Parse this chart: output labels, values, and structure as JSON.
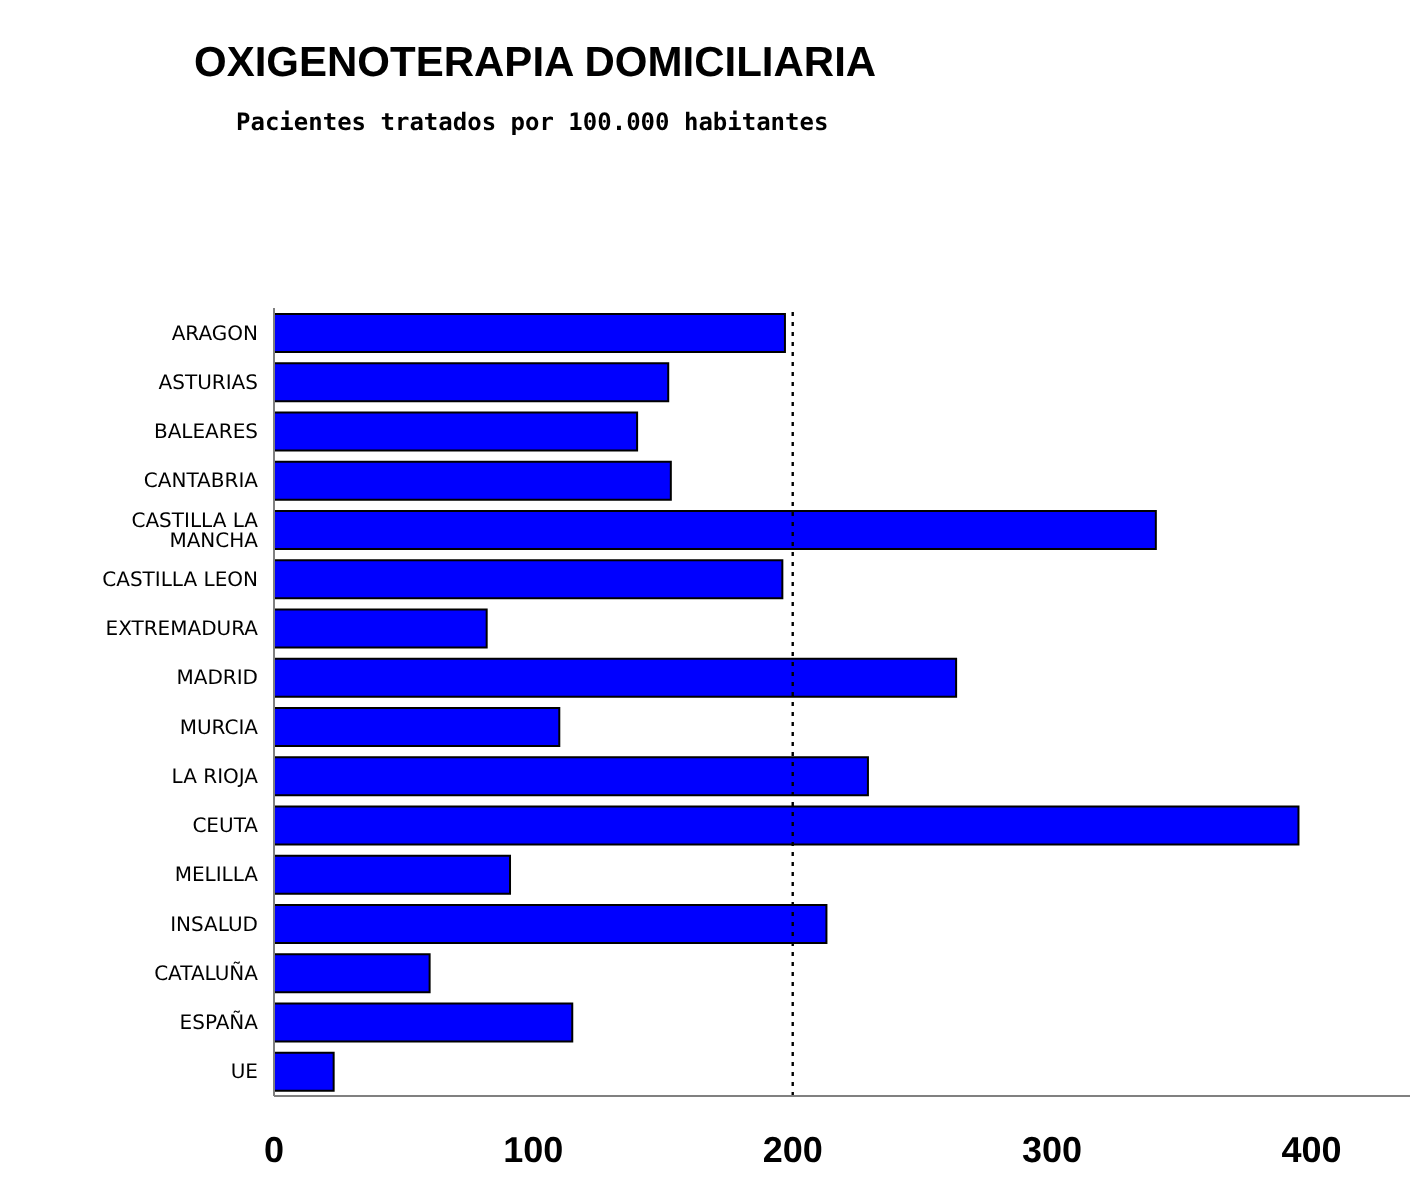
{
  "chart_data": {
    "type": "bar",
    "orientation": "horizontal",
    "title": "OXIGENOTERAPIA DOMICILIARIA",
    "subtitle": "Pacientes tratados por 100.000 habitantes",
    "categories": [
      "ARAGON",
      "ASTURIAS",
      "BALEARES",
      "CANTABRIA",
      "CASTILLA LA MANCHA",
      "CASTILLA LEON",
      "EXTREMADURA",
      "MADRID",
      "MURCIA",
      "LA RIOJA",
      "CEUTA",
      "MELILLA",
      "INSALUD",
      "CATALUÑA",
      "ESPAÑA",
      "UE"
    ],
    "values": [
      197,
      152,
      140,
      153,
      340,
      196,
      82,
      263,
      110,
      229,
      395,
      91,
      213,
      60,
      115,
      23
    ],
    "color": "#0000ff",
    "xlim": [
      0,
      438
    ],
    "xticks": [
      0,
      100,
      200,
      300,
      400
    ],
    "ref_lines": [
      {
        "axis": "x",
        "value": 200,
        "line_style": "dotted",
        "color": "#000000"
      }
    ],
    "grid": false,
    "legend": false
  }
}
